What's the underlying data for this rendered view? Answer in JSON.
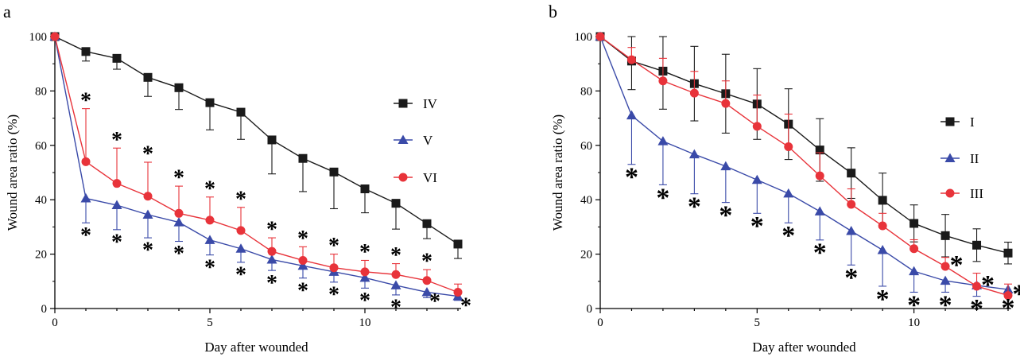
{
  "chart_data": [
    {
      "panel_label": "a",
      "type": "line",
      "xlabel": "Day after wounded",
      "ylabel": "Wound area ratio (%)",
      "xlim": [
        0,
        13
      ],
      "ylim": [
        0,
        100
      ],
      "xticks": [
        0,
        5,
        10
      ],
      "yticks": [
        0,
        20,
        40,
        60,
        80,
        100
      ],
      "legend_position": "right",
      "x": [
        0,
        1,
        2,
        3,
        4,
        5,
        6,
        7,
        8,
        9,
        10,
        11,
        12,
        13
      ],
      "series": [
        {
          "name": "IV",
          "color": "#1a1a1a",
          "marker": "square",
          "error_direction": "down",
          "values": [
            100,
            94.5,
            92,
            85,
            81.2,
            75.7,
            72.2,
            62,
            55.2,
            50.2,
            44,
            38.7,
            31.2,
            23.7
          ],
          "errors": [
            0,
            3.5,
            4,
            7,
            8,
            10,
            10,
            12.5,
            12.2,
            13.5,
            8.8,
            9.5,
            5.5,
            5.3
          ],
          "star_side": "none",
          "stars": []
        },
        {
          "name": "V",
          "color": "#3a4aa8",
          "marker": "triangle",
          "error_direction": "down",
          "values": [
            100,
            40.5,
            38,
            34.5,
            31.7,
            25.2,
            22,
            18,
            15.7,
            13.5,
            11.3,
            8.5,
            6,
            4.5
          ],
          "errors": [
            0,
            9,
            9,
            8.5,
            7,
            5.5,
            5,
            4,
            4.5,
            3.8,
            3.8,
            3.5,
            2,
            1.5
          ],
          "star_side": "below",
          "stars": [
            false,
            true,
            true,
            true,
            true,
            true,
            true,
            true,
            true,
            true,
            true,
            true,
            true,
            true
          ]
        },
        {
          "name": "VI",
          "color": "#e8333a",
          "marker": "circle",
          "error_direction": "up",
          "values": [
            100,
            54,
            46,
            41.3,
            35,
            32.5,
            28.7,
            21,
            17.7,
            15,
            13.5,
            12.5,
            10.3,
            6
          ],
          "errors": [
            0,
            19.5,
            13,
            12.5,
            10,
            8.5,
            8.5,
            5,
            5,
            5,
            4.2,
            4,
            4,
            3
          ],
          "star_side": "above",
          "stars": [
            false,
            true,
            true,
            true,
            true,
            true,
            true,
            true,
            true,
            true,
            true,
            true,
            true,
            false
          ]
        }
      ]
    },
    {
      "panel_label": "b",
      "type": "line",
      "xlabel": "Day after wounded",
      "ylabel": "Wound area ratio (%)",
      "xlim": [
        0,
        13
      ],
      "ylim": [
        0,
        100
      ],
      "xticks": [
        0,
        5,
        10
      ],
      "yticks": [
        0,
        20,
        40,
        60,
        80,
        100
      ],
      "legend_position": "right",
      "x": [
        0,
        1,
        2,
        3,
        4,
        5,
        6,
        7,
        8,
        9,
        10,
        11,
        12,
        13
      ],
      "series": [
        {
          "name": "I",
          "color": "#1a1a1a",
          "marker": "square",
          "error_direction": "both",
          "values": [
            100,
            91,
            87.3,
            82.7,
            79,
            75.2,
            67.8,
            58.3,
            49.8,
            39.8,
            31.3,
            26.8,
            23.3,
            20.4
          ],
          "errors": [
            0,
            10.5,
            14,
            13.7,
            14.5,
            13,
            13,
            11.5,
            9.3,
            10,
            6.8,
            7.8,
            6,
            4
          ],
          "star_side": "none",
          "stars": []
        },
        {
          "name": "II",
          "color": "#3a4aa8",
          "marker": "triangle",
          "error_direction": "down",
          "values": [
            100,
            71,
            61.5,
            56.7,
            52.3,
            47.3,
            42.3,
            35.7,
            28.5,
            21.5,
            13.7,
            10.2,
            8.5,
            7
          ],
          "errors": [
            0,
            18,
            16,
            14.5,
            13.3,
            12.3,
            10.8,
            10.5,
            12.5,
            13.3,
            7.7,
            4.2,
            4,
            2
          ],
          "star_side": "below",
          "stars": [
            false,
            true,
            true,
            true,
            true,
            true,
            true,
            true,
            true,
            true,
            true,
            true,
            true,
            true
          ]
        },
        {
          "name": "III",
          "color": "#e8333a",
          "marker": "circle",
          "error_direction": "up",
          "values": [
            100,
            91.5,
            83.7,
            79.2,
            75.4,
            67,
            59.5,
            48.8,
            38.3,
            30.4,
            22,
            15.5,
            8.2,
            4.8
          ],
          "errors": [
            0,
            4.5,
            8.3,
            8,
            8.3,
            11.5,
            12,
            8.5,
            5.7,
            4.6,
            3.3,
            3.3,
            4.8,
            4.2
          ],
          "star_side": "right",
          "stars": [
            false,
            false,
            false,
            false,
            false,
            false,
            false,
            false,
            false,
            false,
            false,
            true,
            true,
            true
          ]
        }
      ]
    }
  ]
}
